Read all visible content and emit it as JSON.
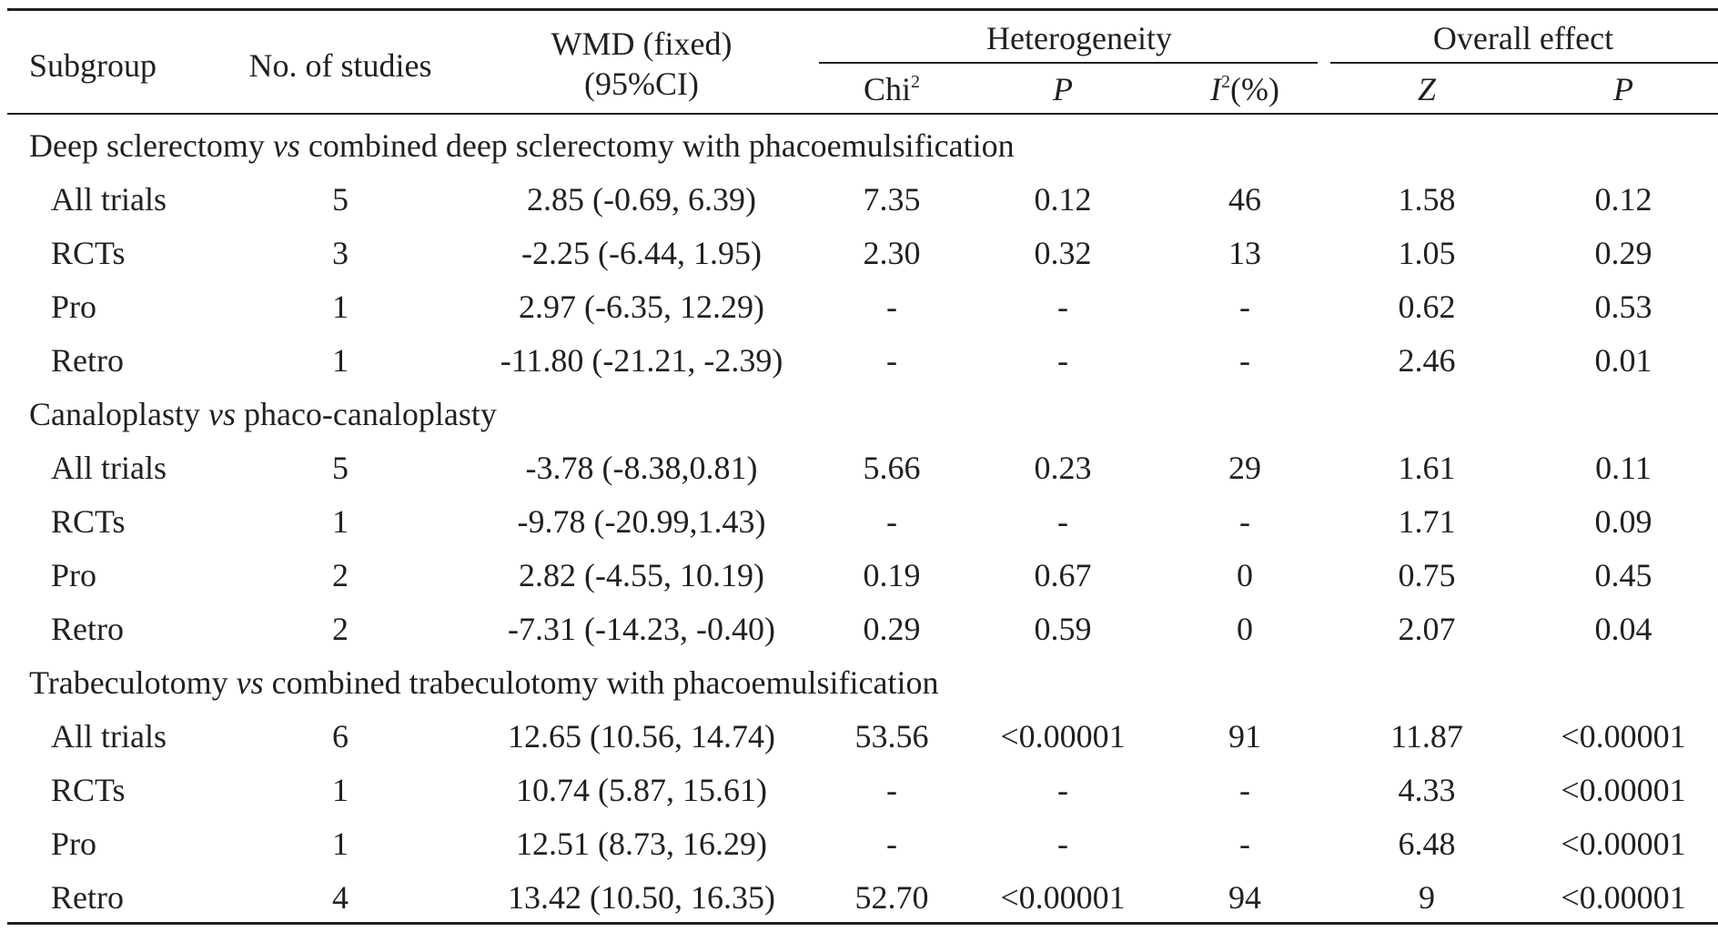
{
  "table": {
    "headers": {
      "subgroup": "Subgroup",
      "studies": "No. of studies",
      "wmd_line1": "WMD (fixed)",
      "wmd_line2": "(95%CI)",
      "heterogeneity": "Heterogeneity",
      "overall": "Overall effect",
      "chi": "Chi",
      "chi_sup": "2",
      "p": "P",
      "i2_letter": "I",
      "i2_sup": "2",
      "i2_unit": "(%)",
      "z": "Z",
      "p2": "P"
    },
    "sections": [
      {
        "title_a": "Deep sclerectomy ",
        "title_vs": "vs",
        "title_b": " combined deep sclerectomy with phacoemulsification",
        "rows": [
          {
            "subgroup": "All trials",
            "studies": "5",
            "wmd": "2.85 (-0.69, 6.39)",
            "chi": "7.35",
            "p": "0.12",
            "i2": "46",
            "z": "1.58",
            "p2": "0.12"
          },
          {
            "subgroup": "RCTs",
            "studies": "3",
            "wmd": "-2.25 (-6.44, 1.95)",
            "chi": "2.30",
            "p": "0.32",
            "i2": "13",
            "z": "1.05",
            "p2": "0.29"
          },
          {
            "subgroup": "Pro",
            "studies": "1",
            "wmd": "2.97 (-6.35, 12.29)",
            "chi": "-",
            "p": "-",
            "i2": "-",
            "z": "0.62",
            "p2": "0.53"
          },
          {
            "subgroup": "Retro",
            "studies": "1",
            "wmd": "-11.80 (-21.21, -2.39)",
            "chi": "-",
            "p": "-",
            "i2": "-",
            "z": "2.46",
            "p2": "0.01"
          }
        ]
      },
      {
        "title_a": "Canaloplasty ",
        "title_vs": "vs",
        "title_b": " phaco-canaloplasty",
        "rows": [
          {
            "subgroup": "All trials",
            "studies": "5",
            "wmd": "-3.78 (-8.38,0.81)",
            "chi": "5.66",
            "p": "0.23",
            "i2": "29",
            "z": "1.61",
            "p2": "0.11"
          },
          {
            "subgroup": "RCTs",
            "studies": "1",
            "wmd": "-9.78 (-20.99,1.43)",
            "chi": "-",
            "p": "-",
            "i2": "-",
            "z": "1.71",
            "p2": "0.09"
          },
          {
            "subgroup": "Pro",
            "studies": "2",
            "wmd": "2.82 (-4.55, 10.19)",
            "chi": "0.19",
            "p": "0.67",
            "i2": "0",
            "z": "0.75",
            "p2": "0.45"
          },
          {
            "subgroup": "Retro",
            "studies": "2",
            "wmd": "-7.31 (-14.23, -0.40)",
            "chi": "0.29",
            "p": "0.59",
            "i2": "0",
            "z": "2.07",
            "p2": "0.04"
          }
        ]
      },
      {
        "title_a": "Trabeculotomy ",
        "title_vs": "vs",
        "title_b": " combined trabeculotomy with phacoemulsification",
        "rows": [
          {
            "subgroup": "All trials",
            "studies": "6",
            "wmd": "12.65 (10.56, 14.74)",
            "chi": "53.56",
            "p": "<0.00001",
            "i2": "91",
            "z": "11.87",
            "p2": "<0.00001"
          },
          {
            "subgroup": "RCTs",
            "studies": "1",
            "wmd": "10.74 (5.87, 15.61)",
            "chi": "-",
            "p": "-",
            "i2": "-",
            "z": "4.33",
            "p2": "<0.00001"
          },
          {
            "subgroup": "Pro",
            "studies": "1",
            "wmd": "12.51 (8.73, 16.29)",
            "chi": "-",
            "p": "-",
            "i2": "-",
            "z": "6.48",
            "p2": "<0.00001"
          },
          {
            "subgroup": "Retro",
            "studies": "4",
            "wmd": "13.42 (10.50, 16.35)",
            "chi": "52.70",
            "p": "<0.00001",
            "i2": "94",
            "z": "9",
            "p2": "<0.00001"
          }
        ]
      }
    ]
  }
}
